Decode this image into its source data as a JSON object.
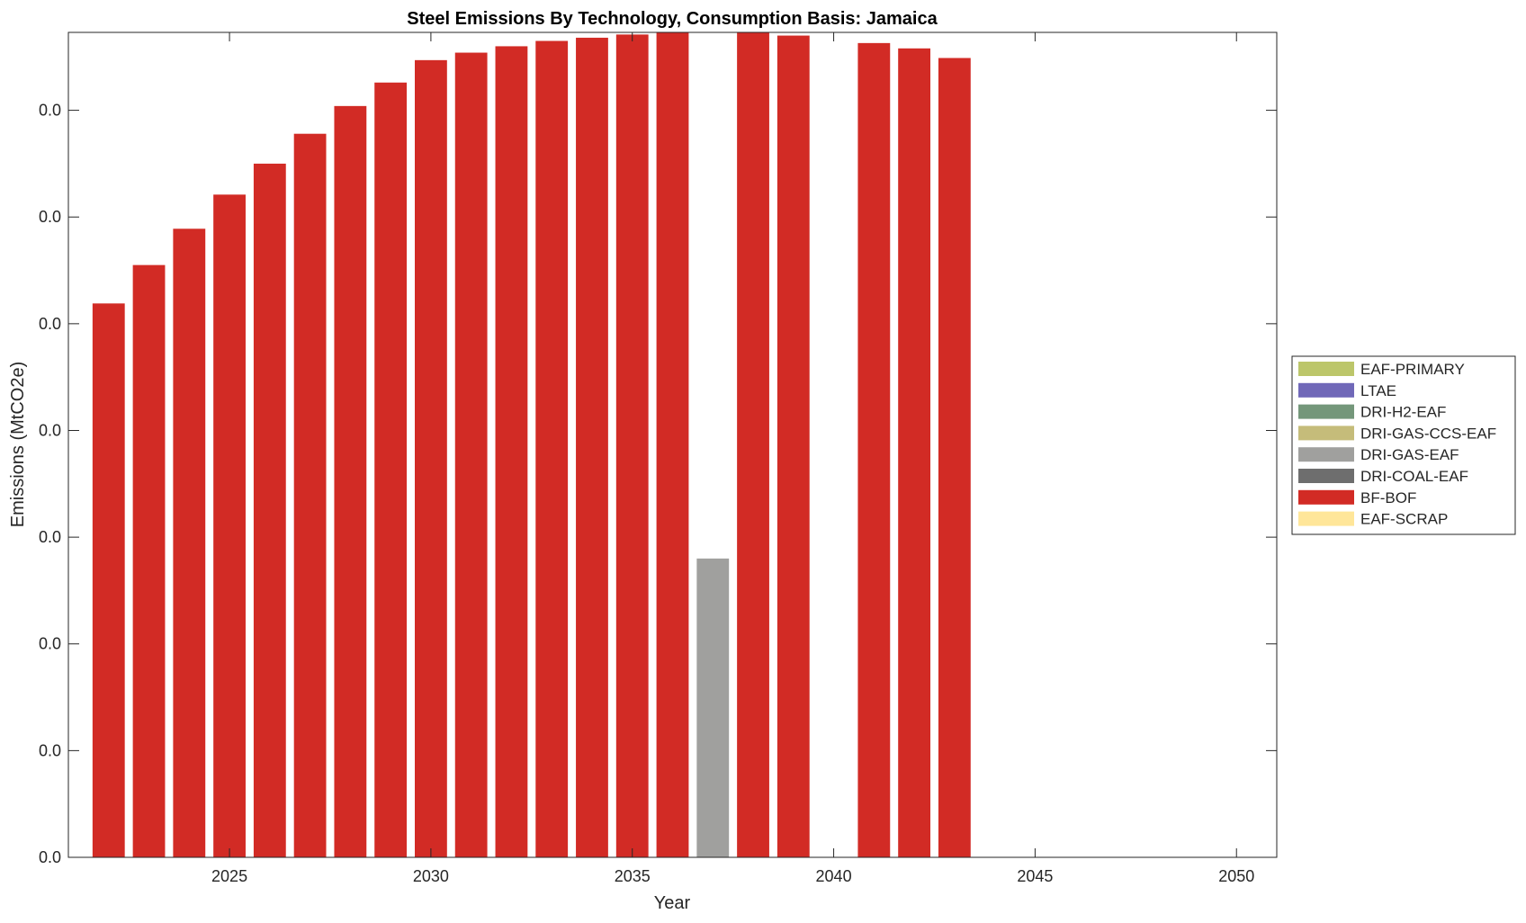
{
  "chart_data": {
    "type": "bar",
    "stacked": true,
    "title": "Steel Emissions By Technology, Consumption Basis: Jamaica",
    "xlabel": "Year",
    "ylabel": "Emissions (MtCO2e)",
    "xlim": [
      2021,
      2051
    ],
    "ylim": [
      0,
      0.0773
    ],
    "x_ticks": [
      2025,
      2030,
      2035,
      2040,
      2045,
      2050
    ],
    "x_tick_labels": [
      "2025",
      "2030",
      "2035",
      "2040",
      "2045",
      "2050"
    ],
    "y_ticks": [
      0,
      0.01,
      0.02,
      0.03,
      0.04,
      0.05,
      0.06,
      0.07
    ],
    "y_tick_labels": [
      "0.0",
      "0.0",
      "0.0",
      "0.0",
      "0.0",
      "0.0",
      "0.0",
      "0.0"
    ],
    "grid": false,
    "legend_position": "right",
    "x": [
      2022,
      2023,
      2024,
      2025,
      2026,
      2027,
      2028,
      2029,
      2030,
      2031,
      2032,
      2033,
      2034,
      2035,
      2036,
      2037,
      2038,
      2039,
      2040,
      2041,
      2042,
      2043
    ],
    "series": [
      {
        "name": "EAF-SCRAP",
        "color": "#FFE699",
        "values": [
          0,
          0,
          0,
          0,
          0,
          0,
          0,
          0,
          0,
          0,
          0,
          0,
          0,
          0,
          0,
          0,
          0,
          0,
          0,
          0,
          0,
          0
        ]
      },
      {
        "name": "BF-BOF",
        "color": "#D22B25",
        "values": [
          0.0519,
          0.0555,
          0.0589,
          0.0621,
          0.065,
          0.0678,
          0.0704,
          0.0726,
          0.0747,
          0.0754,
          0.076,
          0.0765,
          0.0768,
          0.0771,
          0.078,
          0,
          0.078,
          0.077,
          0,
          0.0763,
          0.0758,
          0.0749
        ]
      },
      {
        "name": "DRI-COAL-EAF",
        "color": "#6E6E6E",
        "values": [
          0,
          0,
          0,
          0,
          0,
          0,
          0,
          0,
          0,
          0,
          0,
          0,
          0,
          0,
          0,
          0,
          0,
          0,
          0,
          0,
          0,
          0
        ]
      },
      {
        "name": "DRI-GAS-EAF",
        "color": "#A0A09E",
        "values": [
          0,
          0,
          0,
          0,
          0,
          0,
          0,
          0,
          0,
          0,
          0,
          0,
          0,
          0,
          0,
          0.028,
          0,
          0,
          0,
          0,
          0,
          0
        ]
      },
      {
        "name": "DRI-GAS-CCS-EAF",
        "color": "#C5BC7A",
        "values": [
          0,
          0,
          0,
          0,
          0,
          0,
          0,
          0,
          0,
          0,
          0,
          0,
          0,
          0,
          0,
          0,
          0,
          0,
          0,
          0,
          0,
          0
        ]
      },
      {
        "name": "DRI-H2-EAF",
        "color": "#74977A",
        "values": [
          0,
          0,
          0,
          0,
          0,
          0,
          0,
          0,
          0,
          0,
          0,
          0,
          0,
          0,
          0,
          0,
          0,
          0,
          0,
          0,
          0,
          0
        ]
      },
      {
        "name": "LTAE",
        "color": "#7068B8",
        "values": [
          0,
          0,
          0,
          0,
          0,
          0,
          0,
          0,
          0,
          0,
          0,
          0,
          0,
          0,
          0,
          0,
          0,
          0,
          0,
          0,
          0,
          0
        ]
      },
      {
        "name": "EAF-PRIMARY",
        "color": "#BCC66A",
        "values": [
          0,
          0,
          0,
          0,
          0,
          0,
          0,
          0,
          0,
          0,
          0,
          0,
          0,
          0,
          0,
          0,
          0,
          0,
          0,
          0,
          0,
          0
        ]
      }
    ],
    "legend_order": [
      "EAF-PRIMARY",
      "LTAE",
      "DRI-H2-EAF",
      "DRI-GAS-CCS-EAF",
      "DRI-GAS-EAF",
      "DRI-COAL-EAF",
      "BF-BOF",
      "EAF-SCRAP"
    ]
  }
}
